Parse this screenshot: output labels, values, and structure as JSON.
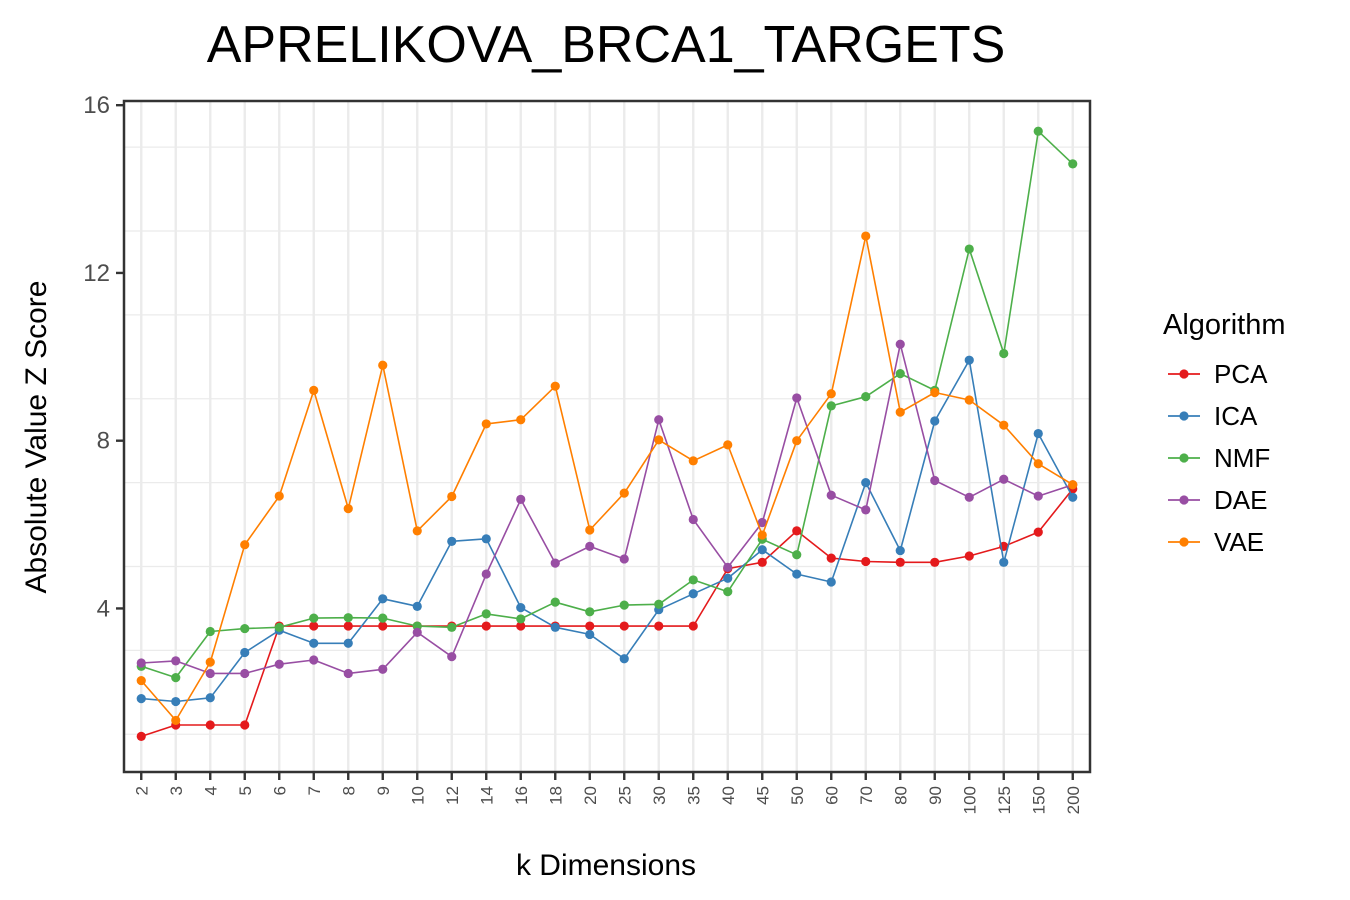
{
  "chart_data": {
    "type": "line",
    "title": "APRELIKOVA_BRCA1_TARGETS",
    "xlabel": "k Dimensions",
    "ylabel": "Absolute Value Z Score",
    "categories": [
      "2",
      "3",
      "4",
      "5",
      "6",
      "7",
      "8",
      "9",
      "10",
      "12",
      "14",
      "16",
      "18",
      "20",
      "25",
      "30",
      "35",
      "40",
      "45",
      "50",
      "60",
      "70",
      "80",
      "90",
      "100",
      "125",
      "150",
      "200"
    ],
    "ylim": [
      0.1,
      16.1
    ],
    "yticks": [
      4,
      8,
      12,
      16
    ],
    "grid": true,
    "legend": {
      "title": "Algorithm",
      "position": "right"
    },
    "series": [
      {
        "name": "PCA",
        "color": "#E41A1C",
        "values": [
          0.95,
          1.22,
          1.22,
          1.22,
          3.58,
          3.58,
          3.58,
          3.58,
          3.58,
          3.58,
          3.58,
          3.58,
          3.58,
          3.58,
          3.58,
          3.58,
          3.58,
          4.95,
          5.1,
          5.85,
          5.2,
          5.12,
          5.1,
          5.1,
          5.25,
          5.48,
          5.82,
          6.85
        ]
      },
      {
        "name": "ICA",
        "color": "#377EB8",
        "values": [
          1.85,
          1.78,
          1.87,
          2.95,
          3.48,
          3.17,
          3.17,
          4.23,
          4.05,
          5.6,
          5.66,
          4.02,
          3.55,
          3.38,
          2.8,
          3.97,
          4.35,
          4.72,
          5.4,
          4.82,
          4.63,
          7.0,
          5.38,
          8.47,
          9.92,
          5.1,
          8.17,
          6.65
        ]
      },
      {
        "name": "NMF",
        "color": "#4DAF4A",
        "values": [
          2.62,
          2.35,
          3.45,
          3.52,
          3.55,
          3.77,
          3.78,
          3.77,
          3.58,
          3.55,
          3.87,
          3.75,
          4.15,
          3.92,
          4.08,
          4.1,
          4.68,
          4.4,
          5.65,
          5.28,
          8.83,
          9.05,
          9.6,
          9.2,
          12.57,
          10.08,
          15.38,
          14.6
        ]
      },
      {
        "name": "DAE",
        "color": "#984EA3",
        "values": [
          2.7,
          2.75,
          2.45,
          2.45,
          2.67,
          2.77,
          2.45,
          2.55,
          3.43,
          2.85,
          4.82,
          6.6,
          5.08,
          5.48,
          5.18,
          8.5,
          6.12,
          4.98,
          6.05,
          9.02,
          6.7,
          6.35,
          10.3,
          7.05,
          6.65,
          7.08,
          6.68,
          6.95
        ]
      },
      {
        "name": "VAE",
        "color": "#FF7F00",
        "values": [
          2.28,
          1.33,
          2.72,
          5.52,
          6.68,
          9.2,
          6.38,
          9.8,
          5.85,
          6.67,
          8.4,
          8.5,
          9.3,
          5.87,
          6.75,
          8.02,
          7.52,
          7.9,
          5.75,
          8.0,
          9.12,
          12.88,
          8.68,
          9.15,
          8.97,
          8.37,
          7.45,
          6.95
        ]
      }
    ]
  }
}
